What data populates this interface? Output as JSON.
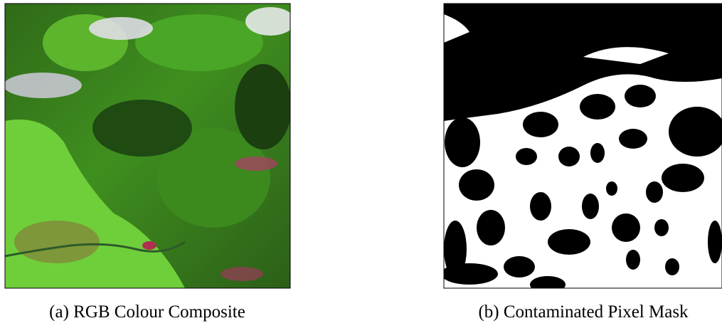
{
  "figure": {
    "panels": [
      {
        "caption": "(a) RGB Colour Composite"
      },
      {
        "caption": "(b) Contaminated Pixel Mask"
      }
    ]
  }
}
